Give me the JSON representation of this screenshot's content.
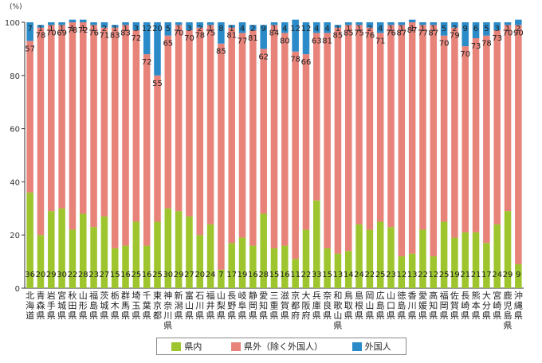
{
  "chart_data": {
    "type": "bar",
    "stacked": true,
    "orientation": "vertical",
    "unit_label": "(%)",
    "ylim": [
      0,
      100
    ],
    "yticks": [
      0,
      20,
      40,
      60,
      80,
      100
    ],
    "grid": false,
    "legend_position": "bottom",
    "categories": [
      "北海道",
      "青森県",
      "岩手県",
      "宮城県",
      "秋田県",
      "山形県",
      "福島県",
      "茨城県",
      "栃木県",
      "群馬県",
      "埼玉県",
      "千葉県",
      "東京都",
      "神奈川県",
      "新潟県",
      "富山県",
      "石川県",
      "福井県",
      "山梨県",
      "長野県",
      "岐阜県",
      "静岡県",
      "愛知県",
      "三重県",
      "滋賀県",
      "京都府",
      "大阪府",
      "兵庫県",
      "奈良県",
      "和歌山県",
      "鳥取県",
      "島根県",
      "岡山県",
      "広島県",
      "山口県",
      "徳島県",
      "香川県",
      "愛媛県",
      "高知県",
      "福岡県",
      "佐賀県",
      "長崎県",
      "熊本県",
      "大分県",
      "宮崎県",
      "鹿児島県",
      "沖縄県"
    ],
    "series": [
      {
        "name": "県内",
        "color": "#9ec52e",
        "values": [
          36,
          20,
          29,
          30,
          22,
          28,
          23,
          27,
          15,
          16,
          25,
          16,
          25,
          30,
          29,
          27,
          20,
          24,
          7,
          17,
          19,
          16,
          28,
          15,
          16,
          11,
          22,
          33,
          15,
          13,
          14,
          24,
          22,
          25,
          23,
          12,
          13,
          22,
          12,
          25,
          19,
          21,
          21,
          17,
          24,
          29,
          9
        ]
      },
      {
        "name": "県外（除く外国人）",
        "color": "#e8837a",
        "values": [
          57,
          78,
          70,
          69,
          78,
          72,
          76,
          71,
          83,
          83,
          72,
          72,
          55,
          65,
          70,
          70,
          78,
          75,
          85,
          81,
          77,
          81,
          62,
          84,
          80,
          78,
          66,
          63,
          81,
          85,
          85,
          75,
          76,
          71,
          76,
          87,
          87,
          77,
          87,
          70,
          79,
          70,
          73,
          78,
          73,
          70,
          90
        ]
      },
      {
        "name": "外国人",
        "color": "#2a8bc8",
        "values": [
          7,
          1,
          1,
          1,
          1,
          1,
          1,
          2,
          1,
          1,
          3,
          12,
          20,
          5,
          1,
          3,
          2,
          1,
          8,
          1,
          4,
          2,
          9,
          1,
          4,
          12,
          12,
          4,
          4,
          1,
          1,
          1,
          2,
          4,
          1,
          1,
          1,
          1,
          1,
          5,
          2,
          9,
          6,
          5,
          3,
          1,
          2
        ]
      }
    ]
  },
  "legend": {
    "items": [
      {
        "label": "県内",
        "color": "#9ec52e"
      },
      {
        "label": "県外（除く外国人）",
        "color": "#e8837a"
      },
      {
        "label": "外国人",
        "color": "#2a8bc8"
      }
    ]
  }
}
